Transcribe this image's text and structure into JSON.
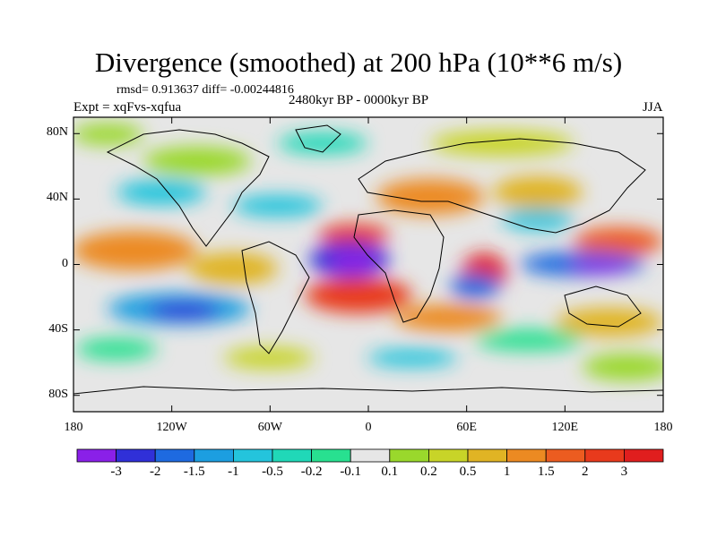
{
  "title": "Divergence (smoothed) at 200 hPa (10**6 m/s)",
  "stats": "rmsd= 0.913637 diff= -0.00244816",
  "experiment": "Expt = xqFvs-xqfua",
  "period": "2480kyr BP - 0000kyr BP",
  "season": "JJA",
  "lat_ticks": [
    "80N",
    "40N",
    "0",
    "40S",
    "80S"
  ],
  "lon_ticks": [
    "180",
    "120W",
    "60W",
    "0",
    "60E",
    "120E",
    "180"
  ],
  "colorbar": {
    "labels": [
      "-3",
      "-2",
      "-1.5",
      "-1",
      "-0.5",
      "-0.2",
      "-0.1",
      "0.1",
      "0.2",
      "0.5",
      "1",
      "1.5",
      "2",
      "3"
    ],
    "colors": [
      "#8a20e8",
      "#3030d8",
      "#1e6ae0",
      "#1c9ee0",
      "#24c4dc",
      "#20d8b8",
      "#28e090",
      "#e6e6e6",
      "#9ad82c",
      "#c8d428",
      "#e0b424",
      "#ec8a22",
      "#ec5c20",
      "#e83a1c",
      "#e01e1e"
    ]
  },
  "chart_data": {
    "type": "heatmap",
    "title": "Divergence (smoothed) at 200 hPa (10**6 m/s)",
    "x_range": [
      -180,
      180
    ],
    "y_range": [
      -90,
      90
    ],
    "field_notes": "JJA anomaly 2480kyr BP minus 0000kyr BP",
    "features": [
      {
        "lon": -15,
        "lat": 0,
        "value": -3.2
      },
      {
        "lon": -5,
        "lat": -12,
        "value": 2.2
      },
      {
        "lon": 55,
        "lat": -10,
        "value": -2.0
      },
      {
        "lon": 65,
        "lat": 5,
        "value": 2.5
      },
      {
        "lon": 140,
        "lat": -2,
        "value": -2.6
      },
      {
        "lon": -140,
        "lat": -22,
        "value": -1.8
      },
      {
        "lon": 40,
        "lat": 35,
        "value": 1.0
      },
      {
        "lon": -160,
        "lat": 5,
        "value": 1.2
      },
      {
        "lon": -60,
        "lat": 40,
        "value": -1.0
      },
      {
        "lon": 170,
        "lat": 15,
        "value": 1.3
      }
    ]
  }
}
